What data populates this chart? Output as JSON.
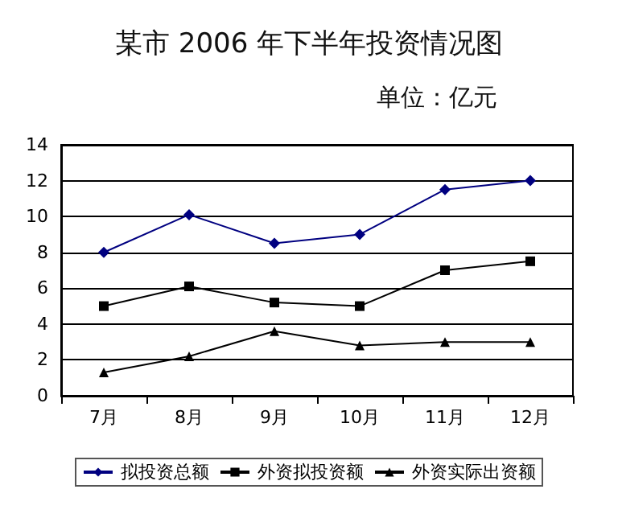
{
  "chart_data": {
    "type": "line",
    "title": "某市 2006 年下半年投资情况图",
    "subtitle": "单位：亿元",
    "categories": [
      "7月",
      "8月",
      "9月",
      "10月",
      "11月",
      "12月"
    ],
    "series": [
      {
        "name": "拟投资总额",
        "color": "#000080",
        "marker": "diamond",
        "values": [
          8,
          10.1,
          8.5,
          9,
          11.5,
          12
        ]
      },
      {
        "name": "外资拟投资额",
        "color": "#000000",
        "marker": "square",
        "values": [
          5,
          6.1,
          5.2,
          5,
          7,
          7.5
        ]
      },
      {
        "name": "外资实际出资额",
        "color": "#000000",
        "marker": "triangle",
        "values": [
          1.3,
          2.2,
          3.6,
          2.8,
          3,
          3
        ]
      }
    ],
    "ylim": [
      0,
      14
    ],
    "yticks": [
      0,
      2,
      4,
      6,
      8,
      10,
      12,
      14
    ],
    "grid": "y",
    "legend": "bottom"
  }
}
